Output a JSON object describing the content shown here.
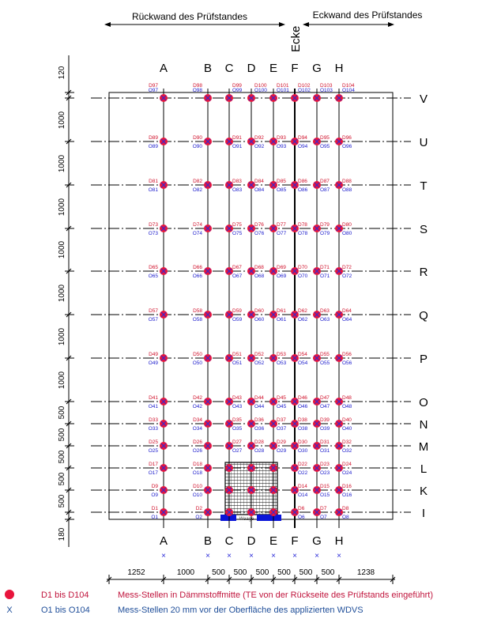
{
  "header": {
    "left_wall": "Rückwand des Prüfstandes",
    "right_wall": "Eckwand des Prüfstandes",
    "corner": "Ecke"
  },
  "columns": [
    "A",
    "B",
    "C",
    "D",
    "E",
    "F",
    "G",
    "H"
  ],
  "rows_bottom_to_top": [
    "I",
    "K",
    "L",
    "M",
    "N",
    "O",
    "P",
    "Q",
    "R",
    "S",
    "T",
    "U",
    "V"
  ],
  "vertical_dimensions_top_to_bottom": [
    "120",
    "1000",
    "1000",
    "1000",
    "1000",
    "1000",
    "1000",
    "1000",
    "500",
    "500",
    "500",
    "500",
    "500",
    "180"
  ],
  "horizontal_dimensions": [
    "1252",
    "1000",
    "500",
    "500",
    "500",
    "500",
    "500",
    "500",
    "1238"
  ],
  "scale_label": "Waage",
  "point_prefix_d": "D",
  "point_prefix_o": "O",
  "legend": [
    {
      "symbol": "●",
      "range": "D1 bis D104",
      "description": "Mess-Stellen in Dämmstoffmitte (TE von der Rückseite des Prüfstands eingeführt)",
      "color": "#c0143c"
    },
    {
      "symbol": "X",
      "range": "O1 bis O104",
      "description": "Mess-Stellen 20 mm vor der Oberfläche des applizierten WDVS",
      "color": "#1f4e99"
    }
  ],
  "colors": {
    "d_point": "#e8143c",
    "o_mark": "#2b2bd8",
    "d_label": "#d0102a",
    "o_label": "#1a1acc",
    "scale": "#0a14d8"
  }
}
